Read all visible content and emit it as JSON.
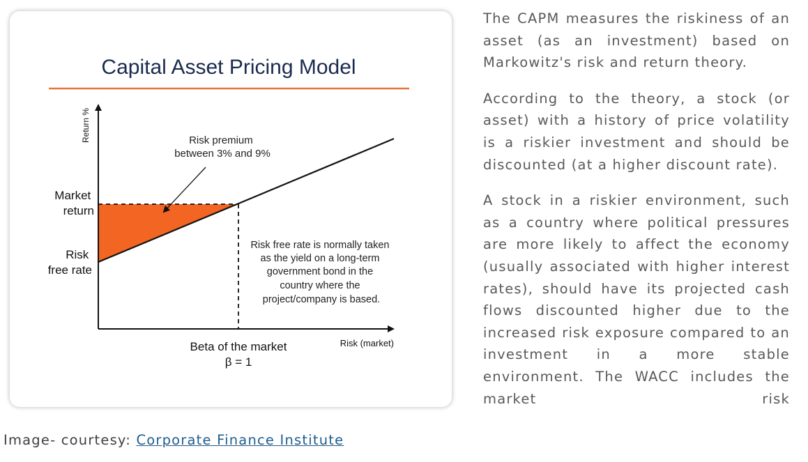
{
  "figure": {
    "title": "Capital Asset Pricing Model",
    "y_axis_label": "Return %",
    "x_axis_label": "Risk (market)",
    "market_return_label": [
      "Market",
      "return"
    ],
    "risk_free_label": [
      "Risk",
      "free rate"
    ],
    "risk_premium_note": [
      "Risk premium",
      "between 3% and 9%"
    ],
    "risk_free_note": [
      "Risk free rate is normally taken",
      "as the yield on a long-term",
      "government bond in the",
      "country where the",
      "project/company is based."
    ],
    "beta_label": "Beta of the market",
    "beta_value": "β = 1",
    "colors": {
      "title": "#1a2a4f",
      "rule": "#e8743b",
      "premium_fill": "#f26522",
      "line": "#111111"
    }
  },
  "chart_data": {
    "type": "line",
    "title": "Capital Asset Pricing Model",
    "xlabel": "Risk (market)",
    "ylabel": "Return %",
    "series": [
      {
        "values_description": "security market line",
        "x": [
          0,
          1
        ],
        "y": [
          "Risk free rate",
          "Market return"
        ]
      }
    ],
    "annotations": [
      "Risk premium between 3% and 9%",
      "Risk free rate is normally taken as the yield on a long-term government bond in the country where the project/company is based.",
      "Beta of the market β = 1"
    ]
  },
  "article": {
    "paragraphs": [
      "The CAPM measures the riskiness of an asset (as an investment) based on Markowitz's risk and return theory.",
      "According to the theory, a stock (or asset) with a history of price volatility is a riskier investment and should be discounted (at a higher discount rate).",
      "A stock in a riskier environment, such as a country where political pressures are more likely to affect the economy (usually associated with higher interest rates), should have its projected cash flows discounted higher due to the increased risk exposure compared to an investment in a more stable environment. The WACC includes the market risk"
    ]
  },
  "caption": {
    "prefix": "Image- courtesy: ",
    "link_text": "Corporate Finance Institute"
  }
}
